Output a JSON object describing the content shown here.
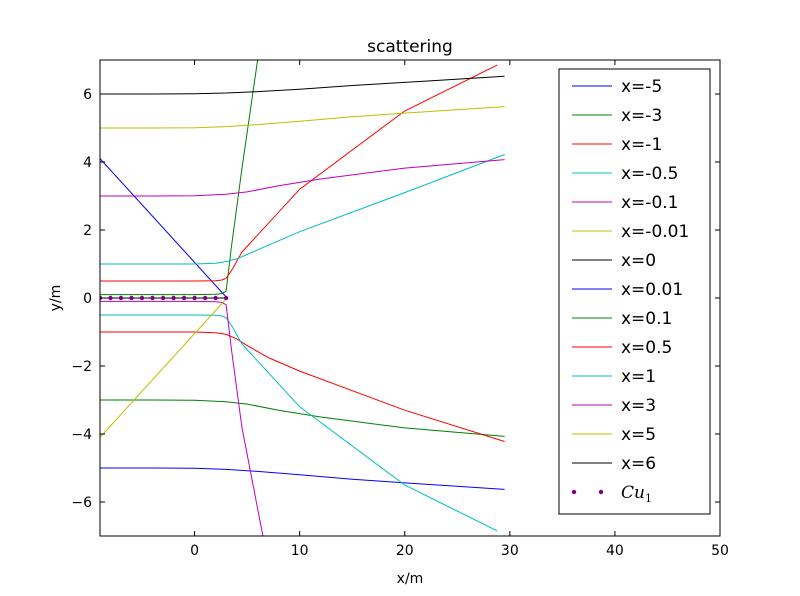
{
  "chart_data": {
    "type": "line",
    "title": "scattering",
    "xlabel": "x/m",
    "ylabel": "y/m",
    "xlim": [
      -9,
      50
    ],
    "ylim": [
      -7,
      7
    ],
    "xticks": [
      0,
      10,
      20,
      30,
      40,
      50
    ],
    "yticks": [
      -6,
      -4,
      -2,
      0,
      2,
      4,
      6
    ],
    "ytick_labels": [
      "−6",
      "−4",
      "−2",
      "0",
      "2",
      "4",
      "6"
    ],
    "grid": false,
    "legend_position": "right",
    "series": [
      {
        "name": "x=-5",
        "color": "#0000ff",
        "x": [
          -9,
          3
        ],
        "y": [
          4.1,
          0.03
        ]
      },
      {
        "name": "x=-3",
        "color": "#008000",
        "x": [
          -9,
          -4,
          0,
          2,
          2.6,
          3.0,
          3.5,
          4.5,
          6.0
        ],
        "y": [
          0.1,
          0.1,
          0.1,
          0.11,
          0.13,
          0.2,
          1.5,
          3.8,
          7.0
        ]
      },
      {
        "name": "x=-1",
        "color": "#ff0000",
        "x": [
          -9,
          -4,
          0,
          2,
          2.6,
          3.0,
          3.6,
          4.5,
          10,
          20,
          28.8
        ],
        "y": [
          0.5,
          0.5,
          0.5,
          0.51,
          0.53,
          0.58,
          0.85,
          1.35,
          3.2,
          5.5,
          6.85
        ]
      },
      {
        "name": "x=-0.5",
        "color": "#00bfbf",
        "x": [
          -9,
          -4,
          0,
          2,
          3,
          4,
          5,
          7,
          10,
          20,
          29.5
        ],
        "y": [
          1.0,
          1.0,
          1.0,
          1.02,
          1.07,
          1.15,
          1.28,
          1.55,
          1.95,
          3.1,
          4.22
        ]
      },
      {
        "name": "x=-0.1",
        "color": "#bf00bf",
        "x": [
          -9,
          -4,
          0,
          3,
          5,
          8,
          12,
          20,
          29.5
        ],
        "y": [
          3.0,
          3.0,
          3.01,
          3.05,
          3.12,
          3.3,
          3.5,
          3.82,
          4.07
        ]
      },
      {
        "name": "x=-0.01",
        "color": "#bfbf00",
        "x": [
          -9,
          -4,
          0,
          3,
          6,
          10,
          15,
          22,
          29.5
        ],
        "y": [
          5.0,
          5.0,
          5.01,
          5.04,
          5.1,
          5.2,
          5.33,
          5.48,
          5.63
        ]
      },
      {
        "name": "x=0",
        "color": "#000000",
        "x": [
          -9,
          -4,
          0,
          3,
          6,
          10,
          15,
          22,
          29.5
        ],
        "y": [
          6.0,
          6.0,
          6.01,
          6.03,
          6.07,
          6.14,
          6.25,
          6.38,
          6.52
        ]
      },
      {
        "name": "x=0.01",
        "color": "#0000ff",
        "x": [
          -9,
          -4,
          0,
          3,
          6,
          10,
          15,
          22,
          29.5
        ],
        "y": [
          -5.0,
          -5.0,
          -5.01,
          -5.04,
          -5.1,
          -5.2,
          -5.33,
          -5.48,
          -5.63
        ]
      },
      {
        "name": "x=0.1",
        "color": "#008000",
        "x": [
          -9,
          -4,
          0,
          3,
          5,
          8,
          12,
          20,
          29.5
        ],
        "y": [
          -3.0,
          -3.0,
          -3.01,
          -3.05,
          -3.12,
          -3.3,
          -3.5,
          -3.82,
          -4.07
        ]
      },
      {
        "name": "x=0.5",
        "color": "#ff0000",
        "x": [
          -9,
          -4,
          0,
          2,
          3,
          4,
          5,
          7,
          10,
          20,
          29.5
        ],
        "y": [
          -1.0,
          -1.0,
          -1.0,
          -1.02,
          -1.07,
          -1.2,
          -1.4,
          -1.75,
          -2.15,
          -3.3,
          -4.22
        ]
      },
      {
        "name": "x=1",
        "color": "#00bfbf",
        "x": [
          -9,
          -4,
          0,
          2,
          2.6,
          3.0,
          3.6,
          4.5,
          10,
          20,
          28.8
        ],
        "y": [
          -0.5,
          -0.5,
          -0.5,
          -0.51,
          -0.53,
          -0.58,
          -0.85,
          -1.35,
          -3.2,
          -5.5,
          -6.85
        ]
      },
      {
        "name": "x=3",
        "color": "#bf00bf",
        "x": [
          -9,
          -4,
          0,
          2,
          2.6,
          3.0,
          3.5,
          4.5,
          6.5
        ],
        "y": [
          -0.1,
          -0.1,
          -0.1,
          -0.11,
          -0.13,
          -0.2,
          -1.5,
          -3.8,
          -7.0
        ]
      },
      {
        "name": "x=5",
        "color": "#bfbf00",
        "x": [
          -9,
          3
        ],
        "y": [
          -4.1,
          -0.03
        ]
      },
      {
        "name": "x=6",
        "color": "#000000",
        "x": [
          -9,
          3
        ],
        "y": [
          0.0,
          0.0
        ]
      }
    ],
    "markers": {
      "name": "Cu",
      "name_subscript": "1",
      "color": "#800080",
      "x": [
        -9,
        -8,
        -7,
        -6,
        -5,
        -4,
        -3,
        -2,
        -1,
        0,
        1,
        2,
        3
      ],
      "y": [
        0,
        0,
        0,
        0,
        0,
        0,
        0,
        0,
        0,
        0,
        0,
        0,
        0
      ]
    }
  }
}
